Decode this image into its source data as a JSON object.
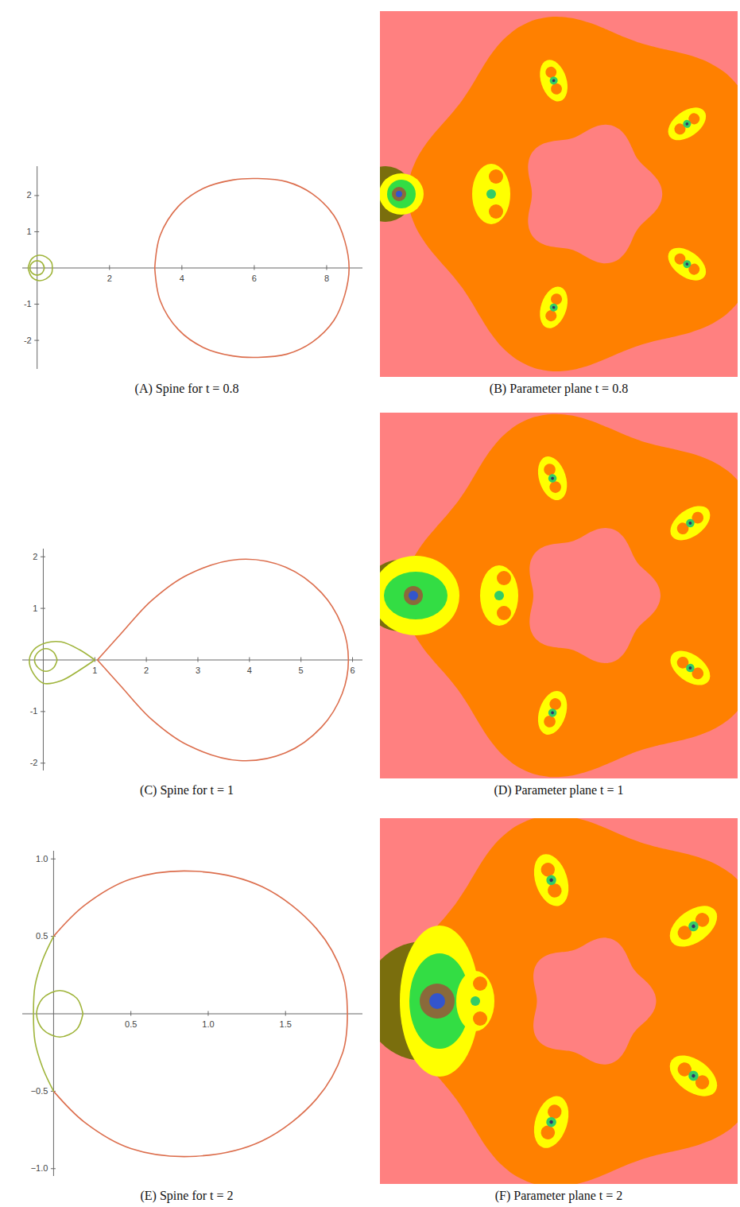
{
  "chart_data": [
    {
      "type": "line",
      "caption": "(A) Spine for t = 0.8",
      "xlim": [
        -0.4,
        9.0
      ],
      "ylim": [
        -2.8,
        2.8
      ],
      "xticks": [
        2,
        4,
        6,
        8
      ],
      "yticks": [
        -2,
        -1,
        1,
        2
      ],
      "series": [
        {
          "color": "#dc6e4d",
          "x": [
            3.25,
            3.4,
            3.9,
            4.6,
            5.4,
            6.1,
            6.9,
            7.6,
            8.2,
            8.5,
            8.62,
            8.5,
            8.2,
            7.6,
            6.9,
            6.1,
            5.4,
            4.6,
            3.9,
            3.4,
            3.25
          ],
          "y": [
            0,
            0.9,
            1.7,
            2.2,
            2.43,
            2.47,
            2.38,
            2.05,
            1.45,
            0.75,
            0,
            -0.75,
            -1.45,
            -2.05,
            -2.38,
            -2.47,
            -2.43,
            -2.2,
            -1.7,
            -0.9,
            0
          ]
        },
        {
          "color": "#9fb43a",
          "x": [
            -0.25,
            -0.15,
            0.05,
            0.25,
            0.4,
            0.42,
            0.4,
            0.25,
            0.05,
            -0.15,
            -0.25,
            null,
            0.2,
            0.14,
            0,
            -0.14,
            -0.2,
            -0.14,
            0,
            0.14,
            0.2
          ],
          "y": [
            0,
            0.25,
            0.35,
            0.3,
            0.15,
            0,
            -0.15,
            -0.3,
            -0.35,
            -0.25,
            0,
            null,
            0,
            0.14,
            0.2,
            0.14,
            0,
            -0.14,
            -0.2,
            -0.14,
            0
          ]
        }
      ]
    },
    {
      "type": "line",
      "caption": "(C) Spine for t = 1",
      "xlim": [
        -0.4,
        6.2
      ],
      "ylim": [
        -2.15,
        2.15
      ],
      "xticks": [
        1,
        2,
        3,
        4,
        5,
        6
      ],
      "yticks": [
        -2,
        -1,
        1,
        2
      ],
      "series": [
        {
          "color": "#dc6e4d",
          "x": [
            1.05,
            1.5,
            2.1,
            2.8,
            3.8,
            4.7,
            5.4,
            5.8,
            5.92,
            5.8,
            5.4,
            4.7,
            3.8,
            2.8,
            2.1,
            1.5,
            1.05
          ],
          "y": [
            0,
            0.5,
            1.15,
            1.65,
            1.95,
            1.8,
            1.3,
            0.65,
            0,
            -0.65,
            -1.3,
            -1.8,
            -1.95,
            -1.65,
            -1.15,
            -0.5,
            0
          ]
        },
        {
          "color": "#9fb43a",
          "x": [
            1.0,
            0.7,
            0.35,
            0.05,
            -0.18,
            -0.27,
            -0.2,
            0,
            0.35,
            0.7,
            1.0,
            null,
            0.27,
            0.2,
            0.05,
            -0.1,
            -0.17,
            -0.1,
            0.05,
            0.2,
            0.27
          ],
          "y": [
            0,
            0.2,
            0.35,
            0.33,
            0.2,
            0,
            -0.25,
            -0.45,
            -0.4,
            -0.2,
            0,
            null,
            0,
            0.15,
            0.22,
            0.15,
            0,
            -0.15,
            -0.22,
            -0.15,
            0
          ]
        }
      ]
    },
    {
      "type": "line",
      "caption": "(E) Spine for t = 2",
      "xlim": [
        -0.2,
        2.0
      ],
      "ylim": [
        -1.05,
        1.05
      ],
      "xticks": [
        0.5,
        {
          "value": 1,
          "label": "1.0"
        },
        1.5
      ],
      "yticks": [
        {
          "value": 1,
          "label": "1.0"
        },
        0.5,
        {
          "value": -0.5,
          "label": "−0.5"
        },
        {
          "value": -1,
          "label": "−1.0"
        }
      ],
      "series": [
        {
          "color": "#dc6e4d",
          "x": [
            0,
            0.2,
            0.5,
            0.92,
            1.35,
            1.7,
            1.87,
            1.9,
            1.87,
            1.7,
            1.35,
            0.92,
            0.5,
            0.2,
            0
          ],
          "y": [
            0.5,
            0.7,
            0.87,
            0.92,
            0.82,
            0.55,
            0.25,
            0,
            -0.25,
            -0.55,
            -0.82,
            -0.92,
            -0.87,
            -0.7,
            -0.5
          ]
        },
        {
          "color": "#9fb43a",
          "x": [
            0,
            -0.07,
            -0.12,
            -0.13,
            -0.12,
            -0.07,
            0,
            null,
            0.19,
            0.15,
            0.04,
            -0.07,
            -0.11,
            -0.07,
            0.04,
            0.15,
            0.19
          ],
          "y": [
            0.5,
            0.35,
            0.18,
            0,
            -0.18,
            -0.35,
            -0.5,
            null,
            0,
            0.1,
            0.15,
            0.1,
            0,
            -0.1,
            -0.15,
            -0.1,
            0
          ]
        }
      ]
    }
  ],
  "images": [
    {
      "caption": "(B) Parameter plane t = 0.8"
    },
    {
      "caption": "(D) Parameter plane t = 1"
    },
    {
      "caption": "(F) Parameter plane t = 2"
    }
  ]
}
